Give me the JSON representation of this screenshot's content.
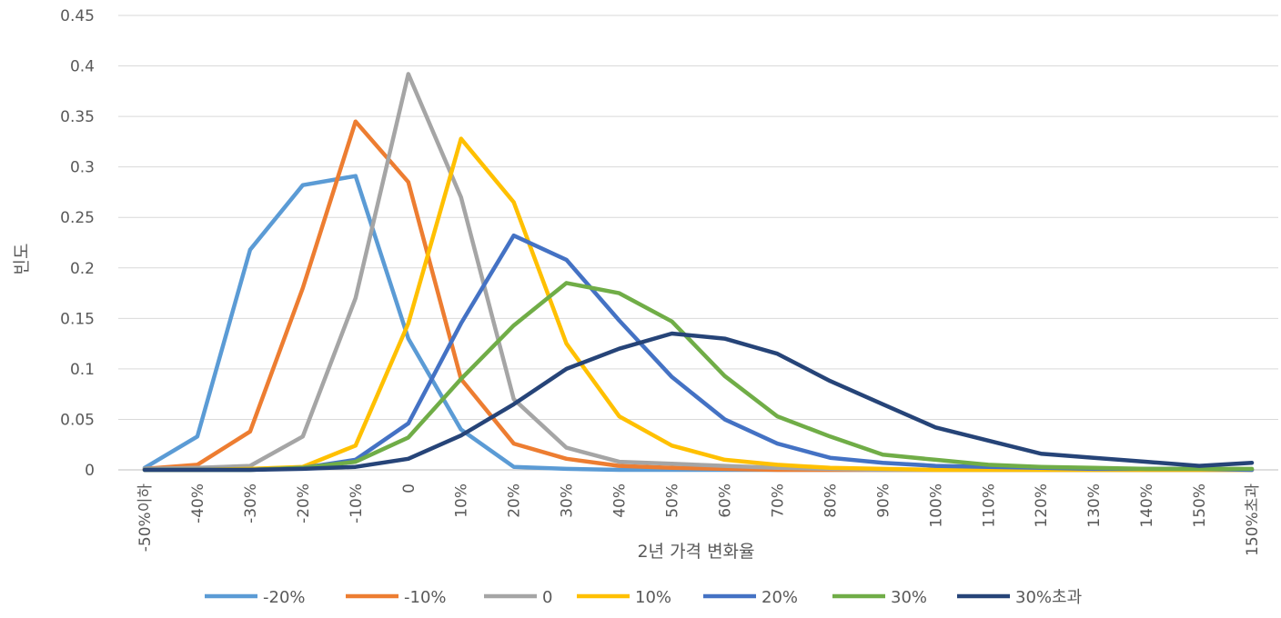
{
  "chart_data": {
    "type": "line",
    "title": "",
    "xlabel": "2년 가격 변화율",
    "ylabel": "빈도",
    "ylim": [
      0,
      0.45
    ],
    "yticks": [
      "0",
      "0.05",
      "0.1",
      "0.15",
      "0.2",
      "0.25",
      "0.3",
      "0.35",
      "0.4",
      "0.45"
    ],
    "grid": true,
    "legend_position": "bottom",
    "categories": [
      "-50%이하",
      "-40%",
      "-30%",
      "-20%",
      "-10%",
      "0",
      "10%",
      "20%",
      "30%",
      "40%",
      "50%",
      "60%",
      "70%",
      "80%",
      "90%",
      "100%",
      "110%",
      "120%",
      "130%",
      "140%",
      "150%",
      "150%초과"
    ],
    "series": [
      {
        "name": "-20%",
        "color": "#5B9BD5",
        "values": [
          0.002,
          0.033,
          0.218,
          0.282,
          0.291,
          0.13,
          0.04,
          0.003,
          0.001,
          0.0,
          0.0,
          0.0,
          0.0,
          0.0,
          0.0,
          0.0,
          0.0,
          0.0,
          0.0,
          0.0,
          0.0,
          0.0
        ]
      },
      {
        "name": "-10%",
        "color": "#ED7D31",
        "values": [
          0.001,
          0.005,
          0.038,
          0.18,
          0.345,
          0.285,
          0.09,
          0.026,
          0.011,
          0.004,
          0.002,
          0.001,
          0.0,
          0.0,
          0.0,
          0.0,
          0.0,
          0.0,
          0.0,
          0.0,
          0.0,
          0.0
        ]
      },
      {
        "name": "0",
        "color": "#A5A5A5",
        "values": [
          0.001,
          0.002,
          0.004,
          0.033,
          0.17,
          0.392,
          0.27,
          0.07,
          0.022,
          0.008,
          0.006,
          0.004,
          0.002,
          0.001,
          0.0,
          0.0,
          0.0,
          0.0,
          0.0,
          0.0,
          0.0,
          0.0
        ]
      },
      {
        "name": "10%",
        "color": "#FFC000",
        "values": [
          0.0,
          0.0,
          0.001,
          0.003,
          0.024,
          0.145,
          0.328,
          0.265,
          0.125,
          0.053,
          0.024,
          0.01,
          0.005,
          0.002,
          0.001,
          0.0,
          0.0,
          0.0,
          0.0,
          0.0,
          0.0,
          0.0
        ]
      },
      {
        "name": "20%",
        "color": "#4472C4",
        "values": [
          0.0,
          0.0,
          0.0,
          0.002,
          0.01,
          0.046,
          0.145,
          0.232,
          0.208,
          0.148,
          0.092,
          0.05,
          0.026,
          0.012,
          0.007,
          0.004,
          0.003,
          0.002,
          0.001,
          0.001,
          0.001,
          0.0
        ]
      },
      {
        "name": "30%",
        "color": "#70AD47",
        "values": [
          0.0,
          0.0,
          0.0,
          0.002,
          0.008,
          0.032,
          0.09,
          0.143,
          0.185,
          0.175,
          0.147,
          0.093,
          0.053,
          0.033,
          0.015,
          0.01,
          0.005,
          0.003,
          0.002,
          0.001,
          0.001,
          0.001
        ]
      },
      {
        "name": "30%초과",
        "color": "#264478",
        "values": [
          0.0,
          0.0,
          0.0,
          0.001,
          0.003,
          0.011,
          0.034,
          0.065,
          0.1,
          0.12,
          0.135,
          0.13,
          0.115,
          0.088,
          0.065,
          0.042,
          0.029,
          0.016,
          0.012,
          0.008,
          0.004,
          0.007
        ]
      }
    ]
  }
}
